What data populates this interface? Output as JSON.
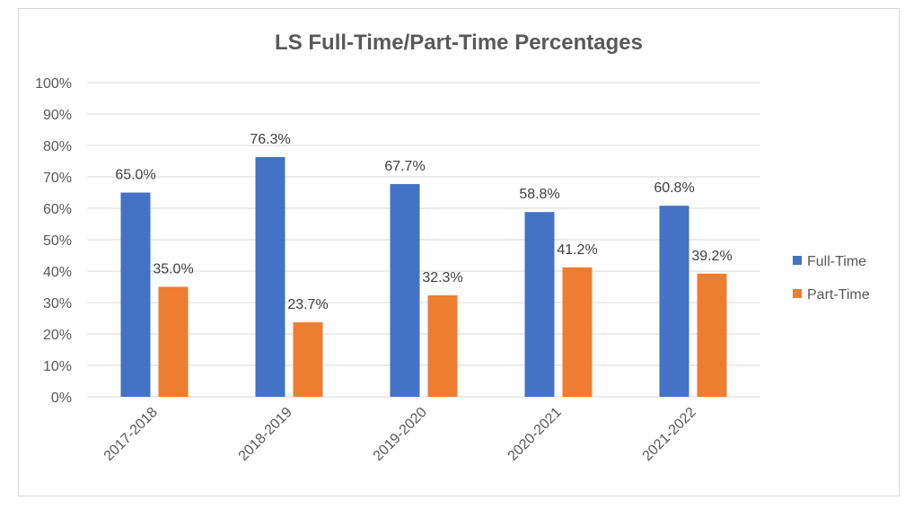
{
  "chart_data": {
    "type": "bar",
    "title": "LS Full-Time/Part-Time Percentages",
    "xlabel": "",
    "ylabel": "",
    "categories": [
      "2017-2018",
      "2018-2019",
      "2019-2020",
      "2020-2021",
      "2021-2022"
    ],
    "series": [
      {
        "name": "Full-Time",
        "color": "#4472c4",
        "values": [
          65.0,
          76.3,
          67.7,
          58.8,
          60.8
        ],
        "labels": [
          "65.0%",
          "76.3%",
          "67.7%",
          "58.8%",
          "60.8%"
        ]
      },
      {
        "name": "Part-Time",
        "color": "#ed7d31",
        "values": [
          35.0,
          23.7,
          32.3,
          41.2,
          39.2
        ],
        "labels": [
          "35.0%",
          "23.7%",
          "32.3%",
          "41.2%",
          "39.2%"
        ]
      }
    ],
    "ylim": [
      0,
      100
    ],
    "yticks": [
      0,
      10,
      20,
      30,
      40,
      50,
      60,
      70,
      80,
      90,
      100
    ],
    "ytick_labels": [
      "0%",
      "10%",
      "20%",
      "30%",
      "40%",
      "50%",
      "60%",
      "70%",
      "80%",
      "90%",
      "100%"
    ],
    "grid": true,
    "legend_position": "right"
  }
}
